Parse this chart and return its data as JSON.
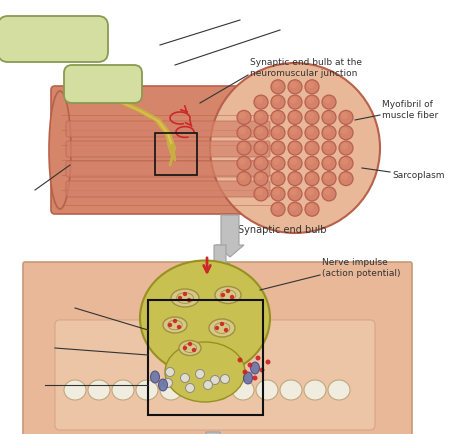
{
  "bg_color": "#ffffff",
  "labels": {
    "synaptic_end_bulb_junction": "Synaptic end bulb at the\nneuromuscular junction",
    "myofibril": "Myofibril of\nmuscle fiber",
    "sarcoplasm": "Sarcoplasm",
    "synaptic_end_bulb": "Synaptic end bulb",
    "nerve_impulse": "Nerve impulse\n(action potential)"
  },
  "colors": {
    "muscle_salmon": "#d4856a",
    "muscle_dark": "#b8604a",
    "muscle_light": "#e8a890",
    "cross_bg": "#e8b898",
    "myofibril_fill": "#d4826a",
    "myofibril_ring": "#b86050",
    "myofibril_center": "#e09070",
    "nerve_green_light": "#d4dea0",
    "nerve_green_dark": "#a8b870",
    "nerve_green_outline": "#8a9a50",
    "axon_yellow": "#c8b040",
    "axon_yellow2": "#e0c050",
    "red_arrow": "#cc2828",
    "gray_arrow": "#c0c0c0",
    "gray_arrow_dark": "#a0a0a0",
    "skin_pink": "#e8b898",
    "skin_outline": "#c89878",
    "skin_light": "#f0cdb0",
    "bulb_yellow": "#c8c050",
    "bulb_yellow2": "#d8d060",
    "bulb_outline": "#989020",
    "membrane_white": "#f0ede0",
    "membrane_outline": "#c0a878",
    "mito_fill": "#d8c888",
    "mito_outline": "#a09040",
    "vesicle_fill": "#e0ddd0",
    "vesicle_outline": "#908880",
    "red_dot": "#cc2020",
    "blue_dot": "#6070a8",
    "black_line": "#333333",
    "box_black": "#111111",
    "text_dark": "#333333",
    "white": "#ffffff"
  }
}
